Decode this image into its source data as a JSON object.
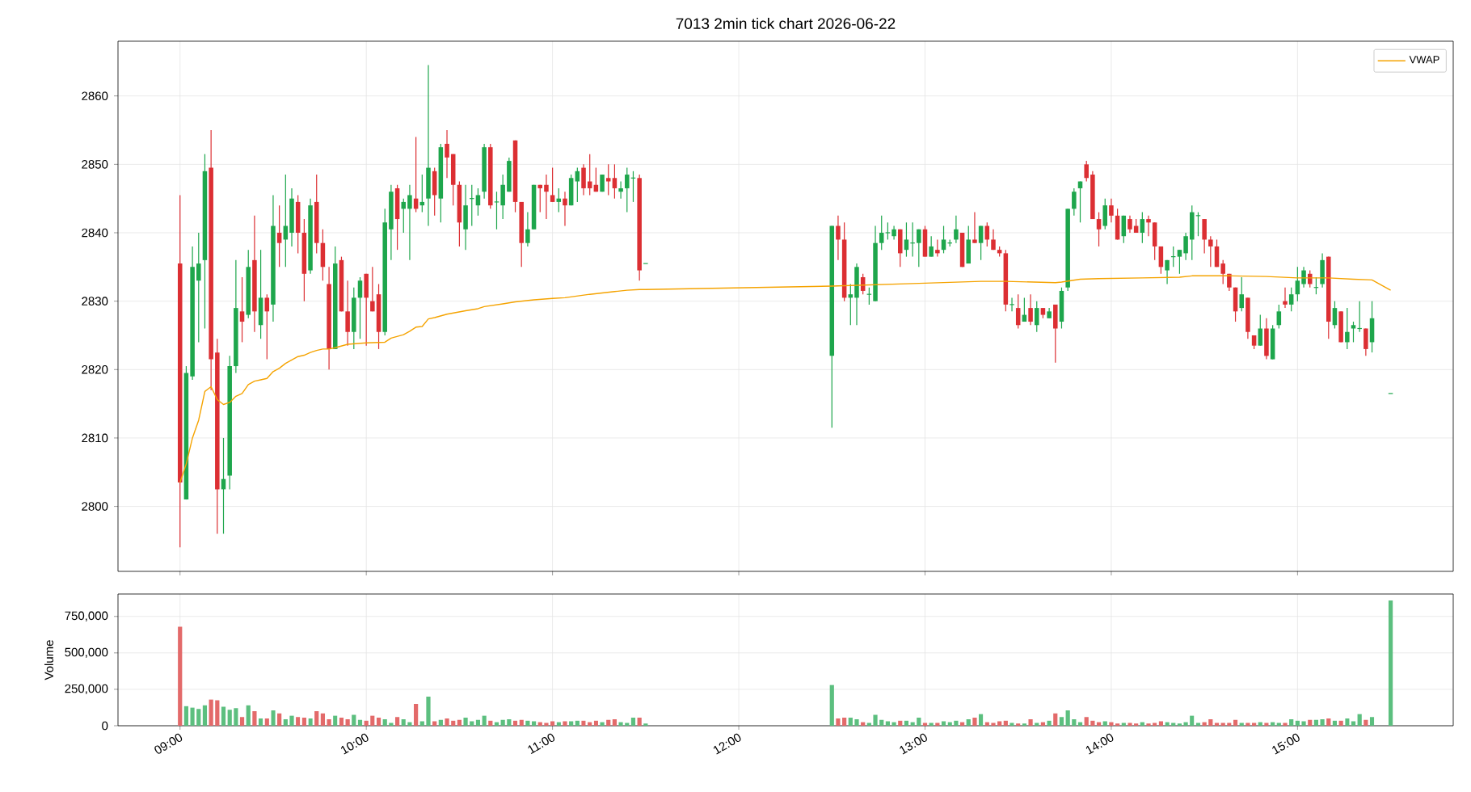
{
  "chart_data": [
    {
      "type": "candlestick",
      "title": "7013 2min tick chart 2026-06-22",
      "colors": [
        "#dc2f33",
        "#1ea64c",
        "#1ea64c",
        "#1ea64c",
        "#1ea64c",
        "#dc2f33",
        "#dc2f33",
        "#1ea64c",
        "#1ea64c",
        "#1ea64c",
        "#dc2f33",
        "#1ea64c",
        "#dc2f33",
        "#1ea64c",
        "#dc2f33",
        "#1ea64c",
        "#dc2f33",
        "#1ea64c",
        "#1ea64c",
        "#dc2f33",
        "#dc2f33",
        "#1ea64c",
        "#dc2f33",
        "#dc2f33",
        "#dc2f33",
        "#1ea64c",
        "#dc2f33",
        "#dc2f33",
        "#1ea64c",
        "#1ea64c",
        "#dc2f33",
        "#dc2f33",
        "#dc2f33",
        "#1ea64c",
        "#1ea64c",
        "#dc2f33",
        "#1ea64c",
        "#1ea64c",
        "#dc2f33",
        "#1ea64c",
        "#1ea64c",
        "#dc2f33",
        "#1ea64c",
        "#dc2f33",
        "#dc2f33",
        "#dc2f33",
        "#1ea64c",
        "#1ea64c",
        "#1ea64c",
        "#1ea64c",
        "#dc2f33",
        "#1ea64c",
        "#1ea64c",
        "#1ea64c",
        "#dc2f33",
        "#dc2f33",
        "#1ea64c",
        "#1ea64c",
        "#dc2f33",
        "#dc2f33",
        "#dc2f33",
        "#1ea64c",
        "#dc2f33",
        "#1ea64c",
        "#1ea64c",
        "#dc2f33",
        "#dc2f33",
        "#dc2f33",
        "#1ea64c",
        "#dc2f33",
        "#dc2f33",
        "#1ea64c",
        "#1ea64c",
        "#1ea64c",
        "#dc2f33",
        "#1ea64c",
        "#1ea64c",
        "#dc2f33",
        "#dc2f33",
        "#1ea64c",
        "#1ea64c",
        "#dc2f33",
        "#1ea64c",
        "#1ea64c",
        "#1ea64c",
        "#1ea64c",
        "#1ea64c",
        "#dc2f33",
        "#1ea64c",
        "#1ea64c",
        "#1ea64c",
        "#dc2f33",
        "#1ea64c",
        "#dc2f33",
        "#1ea64c",
        "#1ea64c",
        "#1ea64c",
        "#dc2f33",
        "#1ea64c",
        "#dc2f33",
        "#1ea64c",
        "#dc2f33",
        "#dc2f33",
        "#dc2f33",
        "#dc2f33",
        "#1ea64c",
        "#dc2f33",
        "#1ea64c",
        "#dc2f33",
        "#1ea64c",
        "#dc2f33",
        "#1ea64c",
        "#dc2f33",
        "#1ea64c",
        "#1ea64c",
        "#1ea64c",
        "#1ea64c",
        "#dc2f33",
        "#dc2f33",
        "#dc2f33",
        "#1ea64c",
        "#dc2f33",
        "#dc2f33",
        "#1ea64c",
        "#dc2f33",
        "#dc2f33",
        "#1ea64c",
        "#dc2f33",
        "#dc2f33",
        "#dc2f33",
        "#1ea64c",
        "#1ea64c",
        "#1ea64c",
        "#1ea64c",
        "#1ea64c",
        "#1ea64c",
        "#dc2f33",
        "#dc2f33",
        "#dc2f33",
        "#dc2f33",
        "#dc2f33",
        "#dc2f33",
        "#1ea64c",
        "#dc2f33",
        "#dc2f33",
        "#1ea64c",
        "#dc2f33",
        "#1ea64c",
        "#1ea64c",
        "#dc2f33",
        "#1ea64c",
        "#1ea64c",
        "#1ea64c",
        "#dc2f33",
        "#1ea64c",
        "#1ea64c",
        "#dc2f33",
        "#1ea64c",
        "#dc2f33",
        "#1ea64c",
        "#1ea64c",
        "#1ea64c",
        "#dc2f33",
        "#1ea64c",
        "#1ea64c"
      ],
      "x": [
        9,
        9.0333,
        9.0667,
        9.1,
        9.1333,
        9.1667,
        9.2,
        9.2333,
        9.2667,
        9.3,
        9.3333,
        9.3667,
        9.4,
        9.4333,
        9.4667,
        9.5,
        9.5333,
        9.5667,
        9.6,
        9.6333,
        9.6667,
        9.7,
        9.7333,
        9.7667,
        9.8,
        9.8333,
        9.8667,
        9.9,
        9.9333,
        9.9667,
        10,
        10.0333,
        10.0667,
        10.1,
        10.1333,
        10.1667,
        10.2,
        10.2333,
        10.2667,
        10.3,
        10.3333,
        10.3667,
        10.4,
        10.4333,
        10.4667,
        10.5,
        10.5333,
        10.5667,
        10.6,
        10.6333,
        10.6667,
        10.7,
        10.7333,
        10.7667,
        10.8,
        10.8333,
        10.8667,
        10.9,
        10.9333,
        10.9667,
        11,
        11.0333,
        11.0667,
        11.1,
        11.1333,
        11.1667,
        11.2,
        11.2333,
        11.2667,
        11.3,
        11.3333,
        11.3667,
        11.4,
        11.4333,
        11.4667,
        11.5,
        12.5,
        12.5333,
        12.5667,
        12.6,
        12.6333,
        12.6667,
        12.7,
        12.7333,
        12.7667,
        12.8,
        12.8333,
        12.8667,
        12.9,
        12.9333,
        12.9667,
        13,
        13.0333,
        13.0667,
        13.1,
        13.1333,
        13.1667,
        13.2,
        13.2333,
        13.2667,
        13.3,
        13.3333,
        13.3667,
        13.4,
        13.4333,
        13.4667,
        13.5,
        13.5333,
        13.5667,
        13.6,
        13.6333,
        13.6667,
        13.7,
        13.7333,
        13.7667,
        13.8,
        13.8333,
        13.8667,
        13.9,
        13.9333,
        13.9667,
        14,
        14.0333,
        14.0667,
        14.1,
        14.1333,
        14.1667,
        14.2,
        14.2333,
        14.2667,
        14.3,
        14.3333,
        14.3667,
        14.4,
        14.4333,
        14.4667,
        14.5,
        14.5333,
        14.5667,
        14.6,
        14.6333,
        14.6667,
        14.7,
        14.7333,
        14.7667,
        14.8,
        14.8333,
        14.8667,
        14.9,
        14.9333,
        14.9667,
        15,
        15.0333,
        15.0667,
        15.1,
        15.1333,
        15.1667,
        15.2,
        15.2333,
        15.2667,
        15.3,
        15.3333,
        15.3667,
        15.4,
        15.5
      ],
      "ohlc": [
        [
          2835.5,
          2845.5,
          2794,
          2803.5
        ],
        [
          2801,
          2820.5,
          2801,
          2819.5
        ],
        [
          2819,
          2838,
          2818.5,
          2835
        ],
        [
          2833,
          2840,
          2824,
          2835.5
        ],
        [
          2836,
          2851.5,
          2826,
          2849
        ],
        [
          2849.5,
          2855,
          2817,
          2821.5
        ],
        [
          2822.5,
          2824.5,
          2796,
          2802.5
        ],
        [
          2802.5,
          2810,
          2796,
          2804
        ],
        [
          2804.5,
          2822,
          2802.5,
          2820.5
        ],
        [
          2820.5,
          2836,
          2819.5,
          2829
        ],
        [
          2828.5,
          2833.5,
          2824,
          2827
        ],
        [
          2828,
          2837.5,
          2827.5,
          2835
        ],
        [
          2836,
          2842.5,
          2825.5,
          2828.5
        ],
        [
          2826.5,
          2837.5,
          2824.5,
          2830.5
        ],
        [
          2830.5,
          2831,
          2821.5,
          2828.5
        ],
        [
          2829.5,
          2845.5,
          2827,
          2841
        ],
        [
          2840,
          2844,
          2835,
          2838.5
        ],
        [
          2839,
          2848.5,
          2835,
          2841
        ],
        [
          2840,
          2846.5,
          2838,
          2845
        ],
        [
          2844.5,
          2845.5,
          2837,
          2840
        ],
        [
          2840,
          2842,
          2830,
          2834
        ],
        [
          2834.5,
          2845,
          2834,
          2844
        ],
        [
          2844.5,
          2848.5,
          2837,
          2838.5
        ],
        [
          2838.5,
          2840.5,
          2833,
          2835
        ],
        [
          2832.5,
          2835,
          2820,
          2823
        ],
        [
          2823,
          2838,
          2823,
          2835.5
        ],
        [
          2836,
          2836.5,
          2828.5,
          2828.5
        ],
        [
          2828.5,
          2833,
          2823.5,
          2825.5
        ],
        [
          2825.5,
          2832,
          2823,
          2830.5
        ],
        [
          2830.5,
          2833.5,
          2824.5,
          2833
        ],
        [
          2834,
          2834,
          2823.5,
          2830.5
        ],
        [
          2830,
          2835,
          2828.5,
          2828.5
        ],
        [
          2831,
          2832.5,
          2823,
          2825.5
        ],
        [
          2825.5,
          2843.5,
          2825,
          2841.5
        ],
        [
          2840.5,
          2847,
          2836,
          2846
        ],
        [
          2846.5,
          2847,
          2837.5,
          2842
        ],
        [
          2843.5,
          2845,
          2840,
          2844.5
        ],
        [
          2843.5,
          2847,
          2836,
          2845.5
        ],
        [
          2845,
          2854,
          2843,
          2843.5
        ],
        [
          2844,
          2848.5,
          2843,
          2844.5
        ],
        [
          2845,
          2864.5,
          2841,
          2849.5
        ],
        [
          2849,
          2849.5,
          2842.5,
          2845.5
        ],
        [
          2845,
          2853,
          2841.5,
          2852.5
        ],
        [
          2853,
          2855,
          2848,
          2851
        ],
        [
          2851.5,
          2851.5,
          2844,
          2847
        ],
        [
          2847,
          2847.5,
          2838,
          2841.5
        ],
        [
          2840.5,
          2847,
          2837.5,
          2844
        ],
        [
          2845,
          2847,
          2841,
          2845
        ],
        [
          2844,
          2846.5,
          2842.5,
          2845.5
        ],
        [
          2846,
          2853,
          2845,
          2852.5
        ],
        [
          2852.5,
          2853,
          2843.5,
          2844
        ],
        [
          2844.5,
          2846,
          2840.5,
          2844.5
        ],
        [
          2844,
          2848.5,
          2842,
          2847
        ],
        [
          2846,
          2851,
          2846,
          2850.5
        ],
        [
          2853.5,
          2853.5,
          2843,
          2844.5
        ],
        [
          2844.5,
          2844.5,
          2835,
          2838.5
        ],
        [
          2838.5,
          2843,
          2838,
          2840.5
        ],
        [
          2840.5,
          2847,
          2840.5,
          2847
        ],
        [
          2847,
          2847,
          2843,
          2846.5
        ],
        [
          2847,
          2848.5,
          2842,
          2846
        ],
        [
          2845.5,
          2849.5,
          2844.5,
          2844.5
        ],
        [
          2844.5,
          2846.5,
          2843,
          2845
        ],
        [
          2845,
          2846,
          2841,
          2844
        ],
        [
          2844,
          2848.5,
          2844,
          2848
        ],
        [
          2847.5,
          2849.5,
          2844.5,
          2849
        ],
        [
          2849.5,
          2850,
          2845.5,
          2846.5
        ],
        [
          2847.5,
          2851.5,
          2845.5,
          2846.5
        ],
        [
          2847,
          2849.5,
          2846,
          2846
        ],
        [
          2846,
          2848.5,
          2846,
          2848.5
        ],
        [
          2848,
          2850,
          2845.5,
          2847.5
        ],
        [
          2848,
          2850,
          2845,
          2846.5
        ],
        [
          2846,
          2847.5,
          2845,
          2846.5
        ],
        [
          2846.5,
          2849.5,
          2843,
          2848.5
        ],
        [
          2848,
          2849,
          2844.5,
          2848
        ],
        [
          2848,
          2848.5,
          2833,
          2834.5
        ],
        [
          2835.5,
          2835.5,
          2835.5,
          2835.5
        ],
        [
          2822,
          2841,
          2811.5,
          2841
        ],
        [
          2841,
          2842.5,
          2836,
          2839
        ],
        [
          2839,
          2841.5,
          2830,
          2830.5
        ],
        [
          2830.5,
          2832.5,
          2826.5,
          2831
        ],
        [
          2830.5,
          2835.5,
          2826.5,
          2835
        ],
        [
          2833.5,
          2834,
          2831,
          2831.5
        ],
        [
          2831,
          2832,
          2829.5,
          2831
        ],
        [
          2830,
          2841,
          2830,
          2838.5
        ],
        [
          2838.5,
          2842.5,
          2837.5,
          2840
        ],
        [
          2840,
          2841.5,
          2839,
          2840
        ],
        [
          2839.5,
          2841,
          2839,
          2840.5
        ],
        [
          2840.5,
          2840.5,
          2835,
          2837
        ],
        [
          2837.5,
          2841.5,
          2836.5,
          2839
        ],
        [
          2838.5,
          2841.5,
          2836.5,
          2838.5
        ],
        [
          2838.5,
          2840.5,
          2835,
          2840.5
        ],
        [
          2840.5,
          2841,
          2836.5,
          2836.5
        ],
        [
          2836.5,
          2839.5,
          2836.5,
          2838
        ],
        [
          2837.5,
          2839,
          2836.5,
          2837
        ],
        [
          2837.5,
          2841,
          2837,
          2839
        ],
        [
          2838.5,
          2839,
          2838,
          2838.5
        ],
        [
          2839,
          2842.5,
          2838.5,
          2840.5
        ],
        [
          2840,
          2840,
          2835,
          2835
        ],
        [
          2835.5,
          2841,
          2835.5,
          2839
        ],
        [
          2839,
          2843,
          2838.5,
          2838.5
        ],
        [
          2838.5,
          2841,
          2836,
          2841
        ],
        [
          2841,
          2841.5,
          2838,
          2839
        ],
        [
          2839,
          2840.5,
          2837.5,
          2837.5
        ],
        [
          2837.5,
          2838,
          2836.5,
          2837
        ],
        [
          2837,
          2837.5,
          2828.5,
          2829.5
        ],
        [
          2829.5,
          2830.5,
          2828.5,
          2829.5
        ],
        [
          2829,
          2831,
          2826,
          2826.5
        ],
        [
          2827,
          2830.5,
          2827,
          2828
        ],
        [
          2829,
          2831,
          2826.5,
          2827
        ],
        [
          2826.5,
          2830,
          2825.5,
          2829
        ],
        [
          2829,
          2829,
          2827.5,
          2828
        ],
        [
          2827.5,
          2829,
          2827.5,
          2828.5
        ],
        [
          2829.5,
          2829.5,
          2821,
          2826
        ],
        [
          2827,
          2832,
          2826,
          2831.5
        ],
        [
          2832,
          2843.5,
          2831.5,
          2843.5
        ],
        [
          2843.5,
          2846.5,
          2842.5,
          2846
        ],
        [
          2846.5,
          2847.5,
          2841.5,
          2847.5
        ],
        [
          2850,
          2850.5,
          2847.5,
          2848
        ],
        [
          2848.5,
          2849,
          2842,
          2842
        ],
        [
          2842,
          2843,
          2838,
          2840.5
        ],
        [
          2841,
          2845,
          2840.5,
          2844
        ],
        [
          2844,
          2845,
          2841.5,
          2842.5
        ],
        [
          2842.5,
          2843.5,
          2839,
          2839
        ],
        [
          2839.5,
          2842.5,
          2838.5,
          2842.5
        ],
        [
          2842,
          2842.5,
          2840,
          2840.5
        ],
        [
          2841,
          2842,
          2840,
          2840
        ],
        [
          2840,
          2843,
          2838.5,
          2842
        ],
        [
          2842,
          2842.5,
          2839.5,
          2841.5
        ],
        [
          2841.5,
          2841.5,
          2836,
          2838
        ],
        [
          2838,
          2838,
          2834,
          2835
        ],
        [
          2834.5,
          2836,
          2832.5,
          2836
        ],
        [
          2836.5,
          2838,
          2835,
          2836.5
        ],
        [
          2836.5,
          2837.5,
          2834,
          2837.5
        ],
        [
          2837,
          2840,
          2836,
          2839.5
        ],
        [
          2839,
          2844,
          2836,
          2843
        ],
        [
          2842.5,
          2843,
          2839.5,
          2842.5
        ],
        [
          2842,
          2842,
          2837,
          2839
        ],
        [
          2839,
          2839.5,
          2835,
          2838
        ],
        [
          2838,
          2839,
          2835,
          2835
        ],
        [
          2835.5,
          2836,
          2832.5,
          2834
        ],
        [
          2834,
          2834,
          2831.5,
          2832
        ],
        [
          2832,
          2832,
          2827,
          2828.5
        ],
        [
          2829,
          2833.5,
          2828.5,
          2831
        ],
        [
          2830.5,
          2830.5,
          2824.5,
          2825.5
        ],
        [
          2825,
          2825,
          2823,
          2823.5
        ],
        [
          2823.5,
          2828,
          2823.5,
          2826
        ],
        [
          2826,
          2827.5,
          2821.5,
          2822
        ],
        [
          2821.5,
          2826.5,
          2821.5,
          2826
        ],
        [
          2826.5,
          2829.5,
          2826,
          2828.5
        ],
        [
          2830,
          2832,
          2829,
          2829.5
        ],
        [
          2829.5,
          2832,
          2828.5,
          2831
        ],
        [
          2831,
          2835,
          2830,
          2833
        ],
        [
          2832.5,
          2835,
          2832,
          2834.5
        ],
        [
          2834,
          2834.5,
          2832,
          2832.5
        ],
        [
          2832,
          2833.5,
          2831,
          2832
        ],
        [
          2832.5,
          2837,
          2832,
          2836
        ],
        [
          2836.5,
          2836.5,
          2824.5,
          2827
        ],
        [
          2826.5,
          2830,
          2826,
          2829
        ],
        [
          2828.5,
          2828.5,
          2824,
          2824
        ],
        [
          2824,
          2829,
          2823,
          2825.5
        ],
        [
          2826,
          2827,
          2824,
          2826.5
        ],
        [
          2826,
          2830,
          2825.5,
          2826
        ],
        [
          2826,
          2826,
          2822,
          2823
        ],
        [
          2824,
          2830,
          2822.5,
          2827.5
        ],
        [
          2816.5,
          2816.5,
          2816.5,
          2816.5
        ]
      ],
      "xlim": [
        8.667,
        15.836
      ],
      "ylim": [
        2790.5,
        2868
      ],
      "xticks": [
        9,
        10,
        11,
        12,
        13,
        14,
        15
      ],
      "yticks": [
        2800,
        2810,
        2820,
        2830,
        2840,
        2850,
        2860
      ],
      "tick_labels": "y",
      "grid": true,
      "legend": "top right",
      "series": [
        {
          "name": "VWAP",
          "type": "line",
          "color": "#f5a300",
          "x": [
            9,
            9.0333,
            9.0667,
            9.1,
            9.1333,
            9.1667,
            9.2,
            9.2333,
            9.2667,
            9.3,
            9.3333,
            9.3667,
            9.4,
            9.4333,
            9.4667,
            9.5,
            9.5333,
            9.5667,
            9.6,
            9.6333,
            9.6667,
            9.7,
            9.7333,
            9.7667,
            9.8,
            9.8333,
            9.9,
            10,
            10.1,
            10.1333,
            10.2,
            10.2333,
            10.2667,
            10.3,
            10.3333,
            10.3667,
            10.4333,
            10.5333,
            10.6,
            10.6333,
            10.7333,
            10.8,
            10.9,
            11,
            11.0667,
            11.2,
            11.3333,
            11.4,
            11.4667,
            11.5,
            12.5,
            12.9667,
            13.3,
            13.4333,
            13.7,
            13.7333,
            13.8333,
            13.9333,
            14.1667,
            14.3667,
            14.4333,
            14.6333,
            14.8333,
            15,
            15.1667,
            15.3,
            15.4,
            15.5
          ],
          "values": [
            2803.5,
            2806.2,
            2810,
            2812.6,
            2816.8,
            2817.5,
            2815.6,
            2814.9,
            2815.2,
            2816.1,
            2816.5,
            2817.8,
            2818.3,
            2818.5,
            2818.7,
            2819.7,
            2820.2,
            2820.9,
            2821.4,
            2821.9,
            2822.1,
            2822.5,
            2822.8,
            2823,
            2823,
            2823.2,
            2823.7,
            2823.9,
            2824,
            2824.6,
            2825.1,
            2825.6,
            2826.2,
            2826.3,
            2827.4,
            2827.6,
            2828.1,
            2828.6,
            2828.9,
            2829.2,
            2829.6,
            2829.9,
            2830.2,
            2830.4,
            2830.5,
            2831,
            2831.4,
            2831.6,
            2831.7,
            2831.7,
            2832.2,
            2832.6,
            2832.9,
            2832.9,
            2832.7,
            2832.8,
            2833.2,
            2833.3,
            2833.4,
            2833.5,
            2833.7,
            2833.7,
            2833.6,
            2833.4,
            2833.4,
            2833.2,
            2833.1,
            2831.6
          ]
        }
      ]
    },
    {
      "type": "bar",
      "ylabel": "Volume",
      "colors": [
        "#e36a6a",
        "#5cbf7f",
        "#5cbf7f",
        "#5cbf7f",
        "#5cbf7f",
        "#e36a6a",
        "#e36a6a",
        "#5cbf7f",
        "#5cbf7f",
        "#5cbf7f",
        "#e36a6a",
        "#5cbf7f",
        "#e36a6a",
        "#5cbf7f",
        "#e36a6a",
        "#5cbf7f",
        "#e36a6a",
        "#5cbf7f",
        "#5cbf7f",
        "#e36a6a",
        "#e36a6a",
        "#5cbf7f",
        "#e36a6a",
        "#e36a6a",
        "#e36a6a",
        "#5cbf7f",
        "#e36a6a",
        "#e36a6a",
        "#5cbf7f",
        "#5cbf7f",
        "#e36a6a",
        "#e36a6a",
        "#e36a6a",
        "#5cbf7f",
        "#5cbf7f",
        "#e36a6a",
        "#5cbf7f",
        "#5cbf7f",
        "#e36a6a",
        "#5cbf7f",
        "#5cbf7f",
        "#e36a6a",
        "#5cbf7f",
        "#e36a6a",
        "#e36a6a",
        "#e36a6a",
        "#5cbf7f",
        "#5cbf7f",
        "#5cbf7f",
        "#5cbf7f",
        "#e36a6a",
        "#5cbf7f",
        "#5cbf7f",
        "#5cbf7f",
        "#e36a6a",
        "#e36a6a",
        "#5cbf7f",
        "#5cbf7f",
        "#e36a6a",
        "#e36a6a",
        "#e36a6a",
        "#5cbf7f",
        "#e36a6a",
        "#5cbf7f",
        "#5cbf7f",
        "#e36a6a",
        "#e36a6a",
        "#e36a6a",
        "#5cbf7f",
        "#e36a6a",
        "#e36a6a",
        "#5cbf7f",
        "#5cbf7f",
        "#5cbf7f",
        "#e36a6a",
        "#5cbf7f",
        "#5cbf7f",
        "#e36a6a",
        "#e36a6a",
        "#5cbf7f",
        "#5cbf7f",
        "#e36a6a",
        "#5cbf7f",
        "#5cbf7f",
        "#5cbf7f",
        "#5cbf7f",
        "#5cbf7f",
        "#e36a6a",
        "#5cbf7f",
        "#5cbf7f",
        "#5cbf7f",
        "#e36a6a",
        "#5cbf7f",
        "#e36a6a",
        "#5cbf7f",
        "#5cbf7f",
        "#5cbf7f",
        "#e36a6a",
        "#5cbf7f",
        "#e36a6a",
        "#5cbf7f",
        "#e36a6a",
        "#e36a6a",
        "#e36a6a",
        "#e36a6a",
        "#5cbf7f",
        "#e36a6a",
        "#5cbf7f",
        "#e36a6a",
        "#5cbf7f",
        "#e36a6a",
        "#5cbf7f",
        "#e36a6a",
        "#5cbf7f",
        "#5cbf7f",
        "#5cbf7f",
        "#5cbf7f",
        "#e36a6a",
        "#e36a6a",
        "#e36a6a",
        "#5cbf7f",
        "#e36a6a",
        "#e36a6a",
        "#5cbf7f",
        "#e36a6a",
        "#e36a6a",
        "#5cbf7f",
        "#e36a6a",
        "#e36a6a",
        "#e36a6a",
        "#5cbf7f",
        "#5cbf7f",
        "#5cbf7f",
        "#5cbf7f",
        "#5cbf7f",
        "#5cbf7f",
        "#e36a6a",
        "#e36a6a",
        "#e36a6a",
        "#e36a6a",
        "#e36a6a",
        "#e36a6a",
        "#5cbf7f",
        "#e36a6a",
        "#e36a6a",
        "#5cbf7f",
        "#e36a6a",
        "#5cbf7f",
        "#5cbf7f",
        "#e36a6a",
        "#5cbf7f",
        "#5cbf7f",
        "#5cbf7f",
        "#e36a6a",
        "#5cbf7f",
        "#5cbf7f",
        "#e36a6a",
        "#5cbf7f",
        "#e36a6a",
        "#5cbf7f",
        "#5cbf7f",
        "#5cbf7f",
        "#e36a6a",
        "#5cbf7f",
        "#5cbf7f"
      ],
      "x": [
        9,
        9.0333,
        9.0667,
        9.1,
        9.1333,
        9.1667,
        9.2,
        9.2333,
        9.2667,
        9.3,
        9.3333,
        9.3667,
        9.4,
        9.4333,
        9.4667,
        9.5,
        9.5333,
        9.5667,
        9.6,
        9.6333,
        9.6667,
        9.7,
        9.7333,
        9.7667,
        9.8,
        9.8333,
        9.8667,
        9.9,
        9.9333,
        9.9667,
        10,
        10.0333,
        10.0667,
        10.1,
        10.1333,
        10.1667,
        10.2,
        10.2333,
        10.2667,
        10.3,
        10.3333,
        10.3667,
        10.4,
        10.4333,
        10.4667,
        10.5,
        10.5333,
        10.5667,
        10.6,
        10.6333,
        10.6667,
        10.7,
        10.7333,
        10.7667,
        10.8,
        10.8333,
        10.8667,
        10.9,
        10.9333,
        10.9667,
        11,
        11.0333,
        11.0667,
        11.1,
        11.1333,
        11.1667,
        11.2,
        11.2333,
        11.2667,
        11.3,
        11.3333,
        11.3667,
        11.4,
        11.4333,
        11.4667,
        11.5,
        12.5,
        12.5333,
        12.5667,
        12.6,
        12.6333,
        12.6667,
        12.7,
        12.7333,
        12.7667,
        12.8,
        12.8333,
        12.8667,
        12.9,
        12.9333,
        12.9667,
        13,
        13.0333,
        13.0667,
        13.1,
        13.1333,
        13.1667,
        13.2,
        13.2333,
        13.2667,
        13.3,
        13.3333,
        13.3667,
        13.4,
        13.4333,
        13.4667,
        13.5,
        13.5333,
        13.5667,
        13.6,
        13.6333,
        13.6667,
        13.7,
        13.7333,
        13.7667,
        13.8,
        13.8333,
        13.8667,
        13.9,
        13.9333,
        13.9667,
        14,
        14.0333,
        14.0667,
        14.1,
        14.1333,
        14.1667,
        14.2,
        14.2333,
        14.2667,
        14.3,
        14.3333,
        14.3667,
        14.4,
        14.4333,
        14.4667,
        14.5,
        14.5333,
        14.5667,
        14.6,
        14.6333,
        14.6667,
        14.7,
        14.7333,
        14.7667,
        14.8,
        14.8333,
        14.8667,
        14.9,
        14.9333,
        14.9667,
        15,
        15.0333,
        15.0667,
        15.1,
        15.1333,
        15.1667,
        15.2,
        15.2333,
        15.2667,
        15.3,
        15.3333,
        15.3667,
        15.4,
        15.5
      ],
      "values": [
        680000,
        135000,
        125000,
        115000,
        140000,
        180000,
        175000,
        130000,
        110000,
        120000,
        60000,
        140000,
        100000,
        50000,
        50000,
        105000,
        85000,
        45000,
        70000,
        60000,
        55000,
        50000,
        100000,
        85000,
        45000,
        70000,
        55000,
        45000,
        75000,
        40000,
        35000,
        70000,
        55000,
        45000,
        20000,
        60000,
        45000,
        25000,
        150000,
        30000,
        200000,
        30000,
        40000,
        50000,
        35000,
        40000,
        55000,
        30000,
        40000,
        70000,
        35000,
        25000,
        40000,
        45000,
        35000,
        40000,
        35000,
        30000,
        25000,
        20000,
        30000,
        25000,
        30000,
        30000,
        35000,
        35000,
        25000,
        35000,
        25000,
        40000,
        45000,
        25000,
        20000,
        55000,
        55000,
        15000,
        280000,
        50000,
        55000,
        55000,
        45000,
        25000,
        20000,
        75000,
        40000,
        30000,
        25000,
        35000,
        35000,
        25000,
        55000,
        20000,
        20000,
        20000,
        30000,
        25000,
        35000,
        25000,
        45000,
        55000,
        80000,
        25000,
        20000,
        30000,
        35000,
        20000,
        15000,
        15000,
        45000,
        20000,
        25000,
        35000,
        85000,
        60000,
        105000,
        45000,
        25000,
        60000,
        35000,
        25000,
        30000,
        25000,
        15000,
        20000,
        20000,
        15000,
        25000,
        15000,
        20000,
        30000,
        25000,
        20000,
        15000,
        25000,
        70000,
        20000,
        25000,
        45000,
        20000,
        20000,
        20000,
        40000,
        20000,
        20000,
        20000,
        25000,
        20000,
        25000,
        20000,
        20000,
        45000,
        35000,
        30000,
        40000,
        40000,
        45000,
        50000,
        35000,
        35000,
        50000,
        30000,
        80000,
        40000,
        60000,
        860000
      ],
      "xlim": [
        8.667,
        15.836
      ],
      "ylim": [
        0,
        904000
      ],
      "xticks": [
        {
          "value": 9,
          "label": "09:00"
        },
        {
          "value": 10,
          "label": "10:00"
        },
        {
          "value": 11,
          "label": "11:00"
        },
        {
          "value": 12,
          "label": "12:00"
        },
        {
          "value": 13,
          "label": "13:00"
        },
        {
          "value": 14,
          "label": "14:00"
        },
        {
          "value": 15,
          "label": "15:00"
        }
      ],
      "yticks": [
        0,
        {
          "value": 250000,
          "label": "250,000"
        },
        {
          "value": 500000,
          "label": "500,000"
        },
        {
          "value": 750000,
          "label": "750,000"
        }
      ],
      "grid": true
    }
  ]
}
